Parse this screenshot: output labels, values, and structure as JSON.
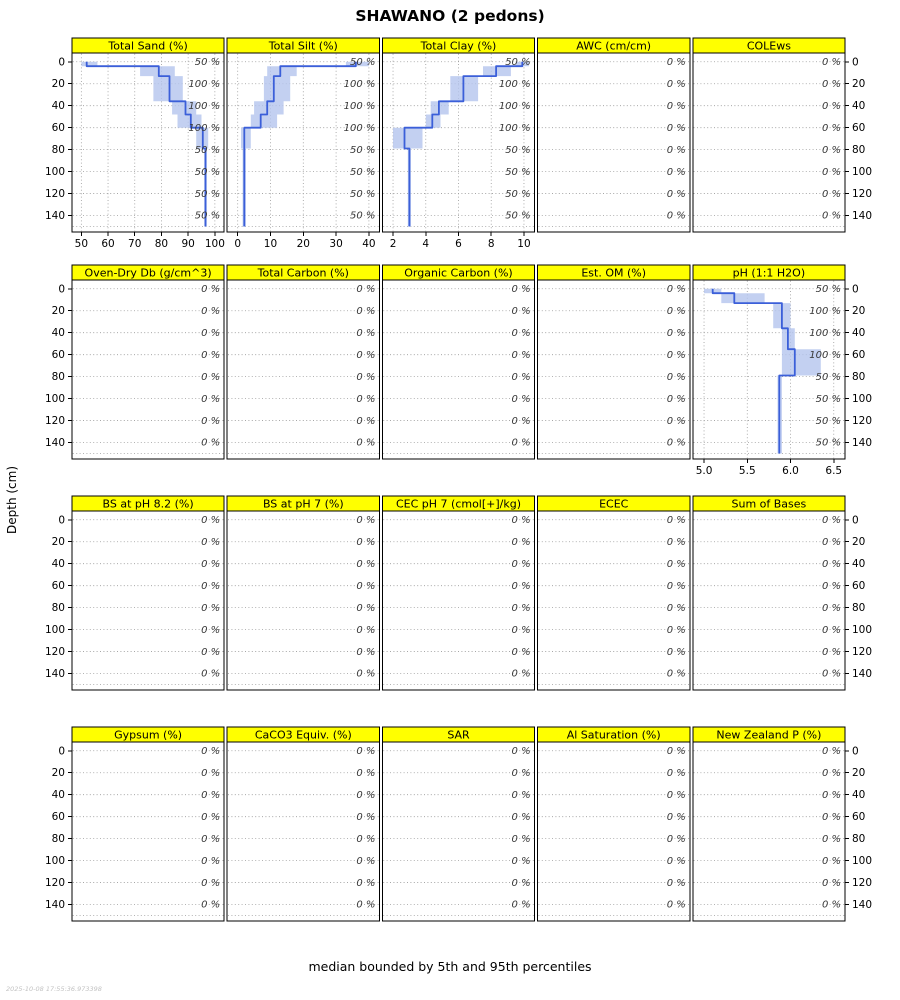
{
  "chart_data": {
    "type": "line",
    "title": "SHAWANO (2 pedons)",
    "caption": "median bounded by 5th and 95th percentiles",
    "timestamp": "2025-10-08 17:55:36.973398",
    "ylabel": "Depth (cm)",
    "depth_axis": {
      "ticks": [
        0,
        20,
        40,
        60,
        80,
        100,
        120,
        140
      ],
      "range": [
        -8,
        155
      ],
      "max_line": 150
    },
    "colors": {
      "strip_bg": "#ffff00",
      "median_line": "#3b5fd9",
      "band": "#b4c4ee",
      "grid": "#9a9a9a"
    },
    "fraction_labels": {
      "data": [
        "50 %",
        "100 %",
        "100 %",
        "100 %",
        "50 %",
        "50 %",
        "50 %",
        "50 %"
      ],
      "empty": [
        "0 %",
        "0 %",
        "0 %",
        "0 %",
        "0 %",
        "0 %",
        "0 %",
        "0 %"
      ]
    },
    "rows": [
      {
        "panels": [
          {
            "label": "Total Sand (%)",
            "xlim": [
              46.5,
              103.5
            ],
            "xticks": [
              50,
              60,
              70,
              80,
              90,
              100
            ],
            "xtick_labels": [
              "50",
              "60",
              "70",
              "80",
              "90",
              "100"
            ],
            "show_xaxis": true,
            "horizons": [
              [
                0,
                4,
                50,
                52,
                56
              ],
              [
                4,
                13,
                72,
                79,
                85
              ],
              [
                13,
                36,
                77,
                83,
                88
              ],
              [
                36,
                48,
                84,
                89,
                93
              ],
              [
                48,
                60,
                86,
                91,
                95
              ],
              [
                60,
                79,
                93,
                95.5,
                97.5
              ],
              [
                79,
                150,
                96,
                96.5,
                97
              ]
            ]
          },
          {
            "label": "Total Silt (%)",
            "xlim": [
              -3.2,
              43.2
            ],
            "xticks": [
              0,
              10,
              20,
              30,
              40
            ],
            "xtick_labels": [
              "0",
              "10",
              "20",
              "30",
              "40"
            ],
            "show_xaxis": true,
            "horizons": [
              [
                0,
                4,
                33,
                36,
                40
              ],
              [
                4,
                13,
                9,
                13,
                18
              ],
              [
                13,
                36,
                8,
                11,
                16
              ],
              [
                36,
                48,
                5,
                9,
                14
              ],
              [
                48,
                60,
                4,
                7,
                12
              ],
              [
                60,
                79,
                1,
                2,
                4
              ],
              [
                79,
                150,
                1.5,
                2,
                2.5
              ]
            ]
          },
          {
            "label": "Total Clay (%)",
            "xlim": [
              1.35,
              10.65
            ],
            "xticks": [
              2,
              4,
              6,
              8,
              10
            ],
            "xtick_labels": [
              "2",
              "4",
              "6",
              "8",
              "10"
            ],
            "show_xaxis": true,
            "horizons": [
              [
                0,
                4,
                9.5,
                9.9,
                10.3
              ],
              [
                4,
                13,
                7.5,
                8.3,
                9.2
              ],
              [
                13,
                36,
                5.5,
                6.3,
                7.2
              ],
              [
                36,
                48,
                4.3,
                4.8,
                5.4
              ],
              [
                48,
                60,
                4.0,
                4.4,
                4.9
              ],
              [
                60,
                79,
                2.0,
                2.7,
                3.8
              ],
              [
                79,
                150,
                2.9,
                3.0,
                3.1
              ]
            ]
          },
          {
            "label": "AWC (cm/cm)",
            "empty": true
          },
          {
            "label": "COLEws",
            "empty": true
          }
        ]
      },
      {
        "panels": [
          {
            "label": "Oven-Dry Db (g/cm^3)",
            "empty": true
          },
          {
            "label": "Total Carbon (%)",
            "empty": true
          },
          {
            "label": "Organic Carbon (%)",
            "empty": true
          },
          {
            "label": "Est. OM (%)",
            "empty": true
          },
          {
            "label": "pH (1:1 H2O)",
            "xlim": [
              4.87,
              6.63
            ],
            "xticks": [
              5.0,
              5.5,
              6.0,
              6.5
            ],
            "xtick_labels": [
              "5.0",
              "5.5",
              "6.0",
              "6.5"
            ],
            "show_xaxis": true,
            "horizons": [
              [
                0,
                4,
                5.0,
                5.1,
                5.2
              ],
              [
                4,
                13,
                5.2,
                5.35,
                5.7
              ],
              [
                13,
                36,
                5.8,
                5.9,
                6.0
              ],
              [
                36,
                55,
                5.9,
                5.97,
                6.05
              ],
              [
                55,
                79,
                5.9,
                6.05,
                6.35
              ],
              [
                79,
                150,
                5.85,
                5.87,
                5.9
              ]
            ]
          }
        ]
      },
      {
        "panels": [
          {
            "label": "BS at pH 8.2 (%)",
            "empty": true
          },
          {
            "label": "BS at pH 7 (%)",
            "empty": true
          },
          {
            "label": "CEC pH 7 (cmol[+]/kg)",
            "empty": true
          },
          {
            "label": "ECEC",
            "empty": true
          },
          {
            "label": "Sum of Bases",
            "empty": true
          }
        ]
      },
      {
        "panels": [
          {
            "label": "Gypsum (%)",
            "empty": true
          },
          {
            "label": "CaCO3 Equiv. (%)",
            "empty": true
          },
          {
            "label": "SAR",
            "empty": true
          },
          {
            "label": "Al Saturation (%)",
            "empty": true
          },
          {
            "label": "New Zealand P (%)",
            "empty": true
          }
        ]
      }
    ]
  }
}
